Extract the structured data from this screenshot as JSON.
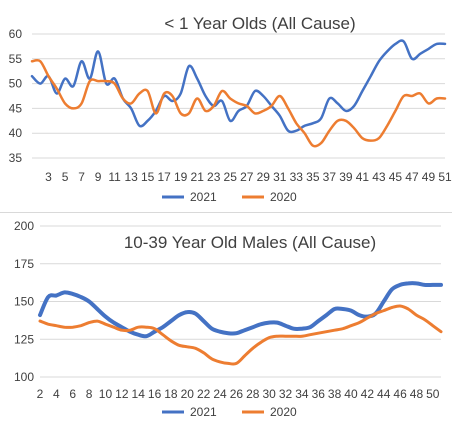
{
  "chart_data": [
    {
      "type": "line",
      "title": "< 1 Year Olds (All Cause)",
      "xlabel": "",
      "ylabel": "",
      "ylim": [
        35,
        60
      ],
      "yticks": [
        35,
        40,
        45,
        50,
        55,
        60
      ],
      "xlim": [
        1,
        51
      ],
      "xtick_labels": [
        "3",
        "5",
        "7",
        "9",
        "11",
        "13",
        "15",
        "17",
        "19",
        "21",
        "23",
        "25",
        "27",
        "29",
        "31",
        "33",
        "35",
        "37",
        "39",
        "41",
        "43",
        "45",
        "47",
        "49",
        "51"
      ],
      "grid": true,
      "legend_position": "bottom",
      "series": [
        {
          "name": "2021",
          "color": "#4472C4",
          "x": [
            1,
            2,
            3,
            4,
            5,
            6,
            7,
            8,
            9,
            10,
            11,
            12,
            13,
            14,
            15,
            16,
            17,
            18,
            19,
            20,
            21,
            22,
            23,
            24,
            25,
            26,
            27,
            28,
            29,
            30,
            31,
            32,
            33,
            34,
            35,
            36,
            37,
            38,
            39,
            40,
            41,
            42,
            43,
            44,
            45,
            46,
            47,
            48,
            49,
            50,
            51
          ],
          "values": [
            51.5,
            50,
            51.5,
            48,
            51,
            49.5,
            54.5,
            51,
            56.5,
            50,
            51,
            47,
            45,
            41.5,
            42.5,
            44.5,
            47.5,
            46.5,
            48,
            53.5,
            51,
            47.5,
            45.5,
            46.5,
            42.5,
            44.5,
            45.5,
            48.5,
            47.5,
            45.5,
            43.5,
            40.5,
            40.5,
            41.5,
            42,
            43,
            47,
            46,
            44.5,
            45.5,
            48.5,
            51.5,
            54.5,
            56.5,
            58,
            58.5,
            55,
            56,
            57,
            58,
            58
          ]
        },
        {
          "name": "2020",
          "color": "#ED7D31",
          "x": [
            1,
            2,
            3,
            4,
            5,
            6,
            7,
            8,
            9,
            10,
            11,
            12,
            13,
            14,
            15,
            16,
            17,
            18,
            19,
            20,
            21,
            22,
            23,
            24,
            25,
            26,
            27,
            28,
            29,
            30,
            31,
            32,
            33,
            34,
            35,
            36,
            37,
            38,
            39,
            40,
            41,
            42,
            43,
            44,
            45,
            46,
            47,
            48,
            49,
            50,
            51
          ],
          "values": [
            54.5,
            54.5,
            51.5,
            49,
            46,
            45,
            46,
            50.5,
            50.5,
            50.5,
            50,
            47,
            46,
            48,
            48.5,
            44,
            48,
            47.5,
            44,
            44,
            47,
            44.5,
            45.5,
            48.5,
            47,
            46,
            45.5,
            44,
            44.5,
            45.5,
            47.5,
            45,
            42,
            40,
            37.5,
            38,
            40.5,
            42.5,
            42.5,
            41,
            39,
            38.5,
            39,
            41.5,
            44.5,
            47.5,
            47.5,
            48,
            46,
            47,
            47
          ]
        }
      ]
    },
    {
      "type": "line",
      "title": "10-39 Year Old Males (All Cause)",
      "xlabel": "",
      "ylabel": "",
      "ylim": [
        100,
        200
      ],
      "yticks": [
        100,
        125,
        150,
        175,
        200
      ],
      "xlim": [
        2,
        51
      ],
      "xtick_labels": [
        "2",
        "4",
        "6",
        "8",
        "10",
        "12",
        "14",
        "16",
        "18",
        "20",
        "22",
        "24",
        "26",
        "28",
        "30",
        "32",
        "34",
        "36",
        "38",
        "40",
        "42",
        "44",
        "46",
        "48",
        "50"
      ],
      "grid": true,
      "legend_position": "bottom",
      "series": [
        {
          "name": "2021",
          "color": "#4472C4",
          "x": [
            2,
            3,
            4,
            5,
            6,
            7,
            8,
            9,
            10,
            11,
            12,
            13,
            14,
            15,
            16,
            17,
            18,
            19,
            20,
            21,
            22,
            23,
            24,
            25,
            26,
            27,
            28,
            29,
            30,
            31,
            32,
            33,
            34,
            35,
            36,
            37,
            38,
            39,
            40,
            41,
            42,
            43,
            44,
            45,
            46,
            47,
            48,
            49,
            50,
            51
          ],
          "values": [
            141,
            153,
            154,
            156,
            155,
            153,
            150,
            145,
            140,
            136,
            133,
            130,
            128,
            127,
            130,
            133,
            137,
            141,
            143,
            142,
            137,
            132,
            130,
            129,
            129,
            131,
            133,
            135,
            136,
            136,
            134,
            132,
            132,
            133,
            137,
            141,
            145,
            145,
            144,
            141,
            140,
            142,
            150,
            158,
            161,
            162,
            162,
            161,
            161,
            161
          ],
          "width": 4
        },
        {
          "name": "2020",
          "color": "#ED7D31",
          "x": [
            2,
            3,
            4,
            5,
            6,
            7,
            8,
            9,
            10,
            11,
            12,
            13,
            14,
            15,
            16,
            17,
            18,
            19,
            20,
            21,
            22,
            23,
            24,
            25,
            26,
            27,
            28,
            29,
            30,
            31,
            32,
            33,
            34,
            35,
            36,
            37,
            38,
            39,
            40,
            41,
            42,
            43,
            44,
            45,
            46,
            47,
            48,
            49,
            50,
            51
          ],
          "values": [
            137,
            135,
            134,
            133,
            133,
            134,
            136,
            137,
            135,
            133,
            131,
            131,
            133,
            133,
            132,
            128,
            124,
            121,
            120,
            119,
            116,
            112,
            110,
            109,
            109,
            114,
            119,
            123,
            126,
            127,
            127,
            127,
            127,
            128,
            129,
            130,
            131,
            132,
            134,
            136,
            139,
            142,
            144,
            146,
            147,
            145,
            141,
            138,
            134,
            130
          ],
          "width": 3
        }
      ]
    }
  ]
}
